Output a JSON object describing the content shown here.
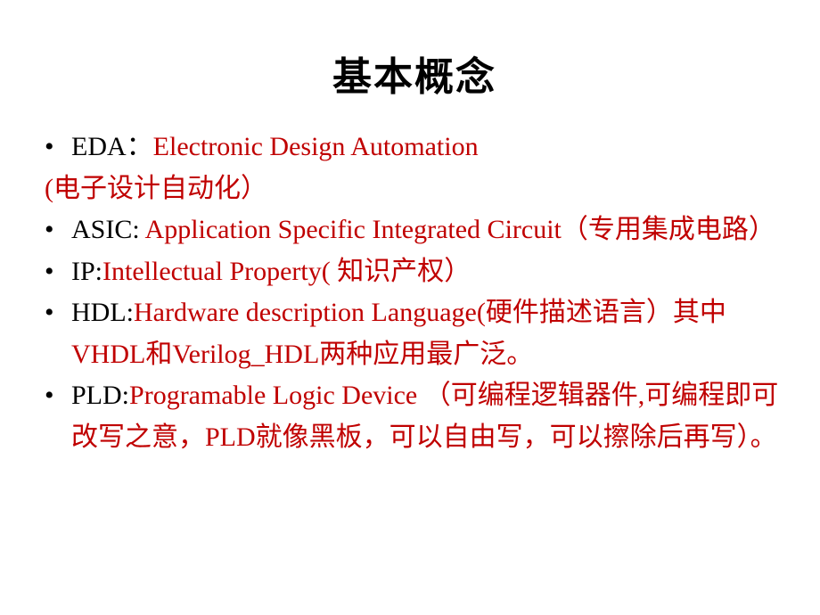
{
  "title": "基本概念",
  "colors": {
    "text_red": "#c00000",
    "text_black": "#000000",
    "background": "#ffffff"
  },
  "typography": {
    "title_fontsize": 44,
    "body_fontsize": 30,
    "font_family": "SimSun"
  },
  "items": {
    "eda_label": "EDA：",
    "eda_expansion": "Electronic Design Automation",
    "eda_translation": "(电子设计自动化）",
    "asic_label": "ASIC:",
    "asic_expansion": " Application Specific Integrated Circuit（专用集成电路）",
    "ip_label": "IP:",
    "ip_expansion": "Intellectual Property( 知识产权）",
    "hdl_label": "HDL:",
    "hdl_expansion": "Hardware description Language(硬件描述语言）其中VHDL和Verilog_HDL两种应用最广泛。",
    "pld_label": "PLD:",
    "pld_expansion": "Programable Logic Device （可编程逻辑器件,可编程即可改写之意，PLD就像黑板，可以自由写，可以擦除后再写）。"
  }
}
